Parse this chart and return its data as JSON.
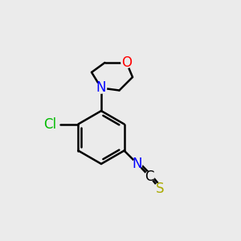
{
  "background_color": "#ebebeb",
  "bond_color": "#000000",
  "cl_color": "#00bb00",
  "n_color": "#0000ff",
  "o_color": "#ff0000",
  "s_color": "#aaaa00",
  "c_color": "#000000",
  "line_width": 1.8,
  "font_size": 12,
  "fig_width": 3.0,
  "fig_height": 3.0,
  "dpi": 100,
  "xlim": [
    0,
    10
  ],
  "ylim": [
    0,
    10
  ]
}
